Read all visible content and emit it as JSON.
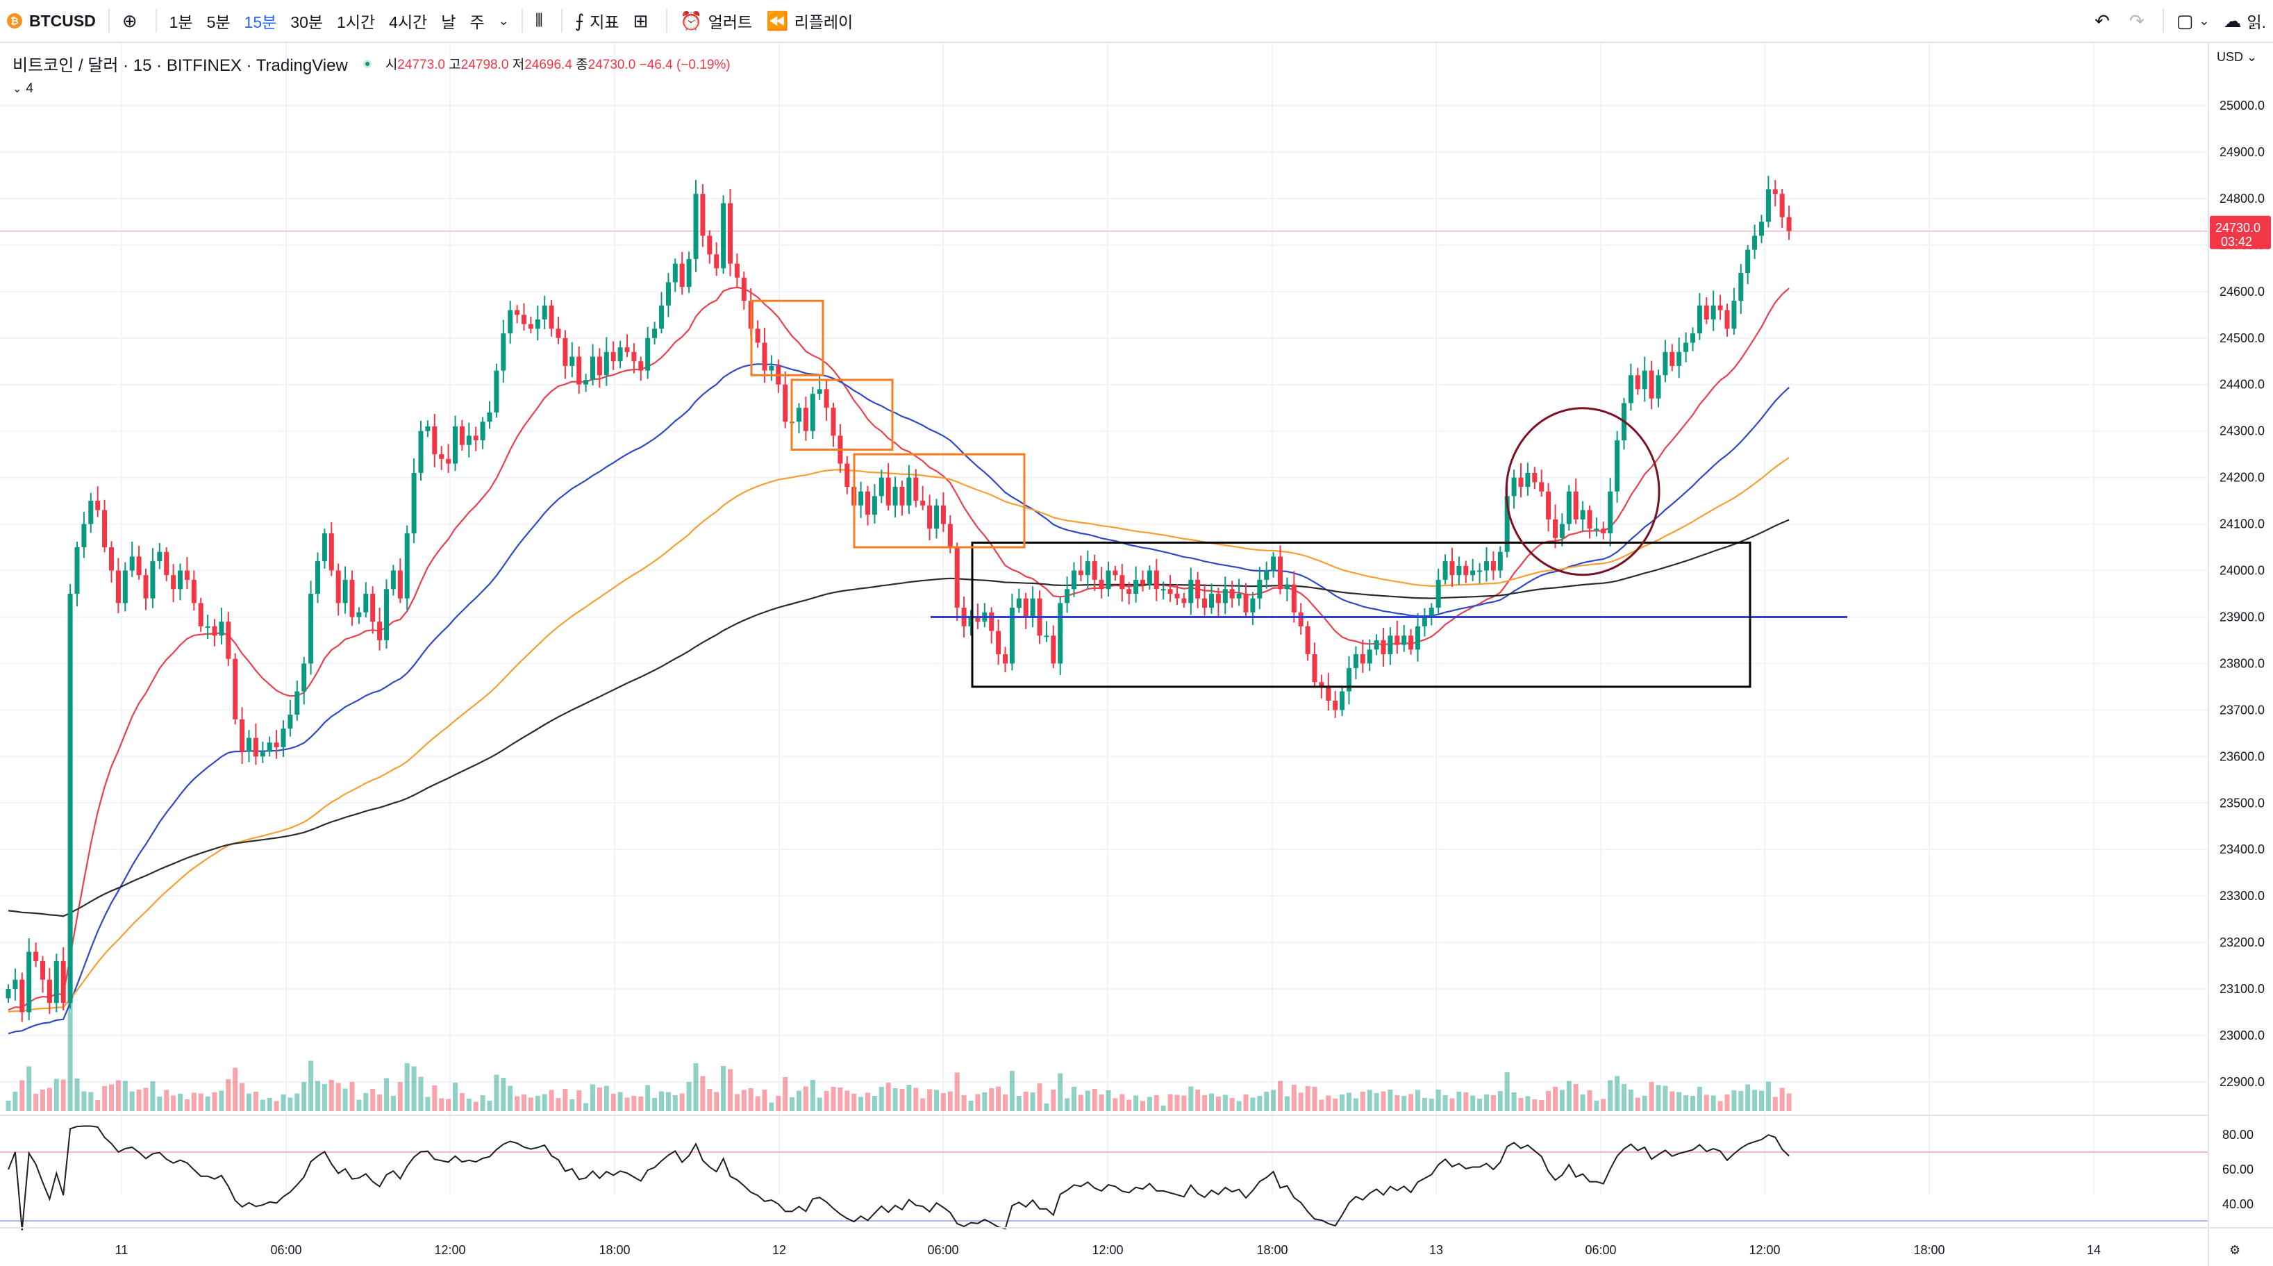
{
  "toolbar": {
    "symbol": "BTCUSD",
    "symbol_icon": "bitcoin-icon",
    "intervals": [
      "1분",
      "5분",
      "15분",
      "30분",
      "1시간",
      "4시간",
      "날",
      "주"
    ],
    "active_interval": "15분",
    "indicators_label": "지표",
    "alert_label": "얼러트",
    "replay_label": "리플레이",
    "right_text": "읽."
  },
  "legend": {
    "title": "비트코인 / 달러 · 15 · BITFINEX · TradingView",
    "open_label": "시",
    "open": "24773.0",
    "high_label": "고",
    "high": "24798.0",
    "low_label": "저",
    "low": "24696.4",
    "close_label": "종",
    "close": "24730.0",
    "change": "−46.4 (−0.19%)",
    "indicator_count": "4"
  },
  "price_axis": {
    "currency": "USD",
    "current_price": "24730.0",
    "countdown": "03:42",
    "current_color": "#f23645"
  },
  "rsi_axis_labels": [
    "80.00",
    "60.00",
    "40.00"
  ],
  "colors": {
    "up": "#089981",
    "down": "#f23645",
    "ema_red": "#e8414e",
    "ema_blue": "#2f49c6",
    "ema_orange": "#f59f32",
    "ema_black": "#2b2b2b",
    "support_line": "#2f3fd6",
    "box_orange": "#f57c1f",
    "circle": "#7a1020"
  },
  "chart_data": {
    "type": "candlestick",
    "symbol": "BTCUSD",
    "exchange": "BITFINEX",
    "interval": "15",
    "y_axis": {
      "min": 22900,
      "max": 25000,
      "step": 100
    },
    "x_tick_labels": [
      "11",
      "06:00",
      "12:00",
      "18:00",
      "12",
      "06:00",
      "12:00",
      "18:00",
      "13",
      "06:00",
      "12:00",
      "18:00",
      "14"
    ],
    "candles_close": [
      23100,
      23120,
      23050,
      23180,
      23160,
      23120,
      23070,
      23160,
      23070,
      23950,
      24050,
      24100,
      24150,
      24130,
      24050,
      24000,
      23930,
      24000,
      24030,
      23990,
      23940,
      24020,
      24040,
      23990,
      23960,
      24000,
      23980,
      23930,
      23880,
      23880,
      23860,
      23890,
      23810,
      23680,
      23610,
      23640,
      23600,
      23610,
      23630,
      23620,
      23660,
      23690,
      23740,
      23800,
      23950,
      24020,
      24080,
      24000,
      23930,
      23980,
      23900,
      23910,
      23950,
      23890,
      23850,
      23960,
      24000,
      23940,
      24080,
      24210,
      24300,
      24310,
      24250,
      24240,
      24230,
      24310,
      24270,
      24290,
      24280,
      24320,
      24340,
      24430,
      24510,
      24560,
      24550,
      24530,
      24520,
      24540,
      24570,
      24520,
      24500,
      24440,
      24460,
      24400,
      24410,
      24460,
      24420,
      24470,
      24450,
      24480,
      24470,
      24450,
      24430,
      24500,
      24520,
      24570,
      24620,
      24660,
      24610,
      24670,
      24810,
      24720,
      24680,
      24650,
      24790,
      24660,
      24630,
      24580,
      24520,
      24490,
      24430,
      24440,
      24400,
      24320,
      24320,
      24350,
      24300,
      24380,
      24390,
      24350,
      24290,
      24230,
      24180,
      24140,
      24170,
      24120,
      24160,
      24200,
      24140,
      24180,
      24140,
      24200,
      24150,
      24140,
      24090,
      24140,
      24100,
      24050,
      23920,
      23880,
      23900,
      23890,
      23910,
      23870,
      23820,
      23800,
      23920,
      23940,
      23900,
      23940,
      23860,
      23860,
      23800,
      23930,
      23960,
      24000,
      23990,
      24020,
      23980,
      23960,
      24000,
      23990,
      23960,
      23950,
      23980,
      23970,
      24000,
      23960,
      23960,
      23950,
      23940,
      23930,
      23980,
      23940,
      23920,
      23950,
      23930,
      23960,
      23940,
      23950,
      23910,
      23940,
      23980,
      24000,
      24030,
      23960,
      23970,
      23910,
      23880,
      23820,
      23760,
      23750,
      23720,
      23700,
      23740,
      23790,
      23820,
      23800,
      23830,
      23850,
      23820,
      23860,
      23840,
      23860,
      23830,
      23880,
      23900,
      23920,
      23980,
      24020,
      23990,
      24010,
      23990,
      24000,
      24000,
      24020,
      24000,
      24040,
      24160,
      24200,
      24180,
      24210,
      24190,
      24170,
      24110,
      24070,
      24100,
      24170,
      24110,
      24130,
      24090,
      24090,
      24080,
      24170,
      24280,
      24360,
      24420,
      24390,
      24430,
      24370,
      24420,
      24470,
      24440,
      24470,
      24490,
      24510,
      24570,
      24540,
      24570,
      24560,
      24520,
      24580,
      24640,
      24690,
      24720,
      24750,
      24820,
      24810,
      24760,
      24730
    ]
  },
  "volume_note": "volume histogram",
  "rsi_note": "RSI panel"
}
